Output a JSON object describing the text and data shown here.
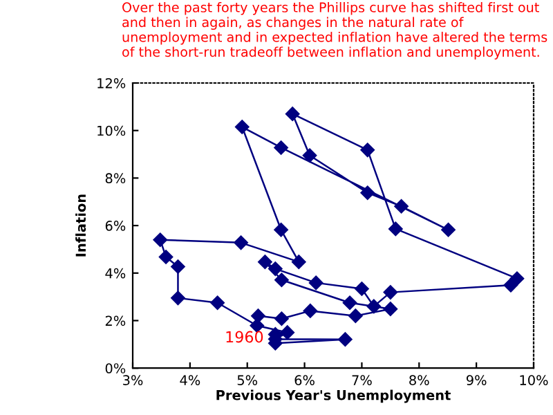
{
  "chart_data": {
    "type": "line",
    "title": "Over the past forty years the Phillips curve has shifted first out and then in again, as changes in the natural rate of unemployment and in expected inflation have altered the terms of the short-run tradeoff between inflation and unemployment.",
    "xlabel": "Previous Year's Unemployment",
    "ylabel": "Inflation",
    "series": [
      {
        "color": "#000080",
        "x": [
          5.49,
          5.49,
          6.71,
          5.49,
          5.7,
          5.17,
          4.48,
          3.79,
          3.79,
          3.58,
          3.48,
          4.89,
          5.9,
          5.59,
          4.91,
          5.59,
          8.51,
          7.69,
          7.1,
          6.09,
          5.79,
          7.1,
          7.59,
          9.71,
          9.6,
          7.5,
          7.21,
          7.0,
          6.2,
          5.49,
          5.31,
          5.6,
          6.79,
          7.5,
          6.89,
          6.1,
          5.6,
          5.19
        ],
        "values": [
          1.42,
          1.05,
          1.21,
          1.22,
          1.5,
          1.79,
          2.75,
          2.95,
          4.27,
          4.68,
          5.4,
          5.28,
          4.47,
          5.82,
          10.15,
          9.28,
          5.82,
          6.81,
          7.38,
          8.95,
          10.7,
          9.18,
          5.86,
          3.77,
          3.49,
          3.19,
          2.6,
          3.34,
          3.59,
          4.18,
          4.47,
          3.71,
          2.75,
          2.49,
          2.2,
          2.41,
          2.08,
          2.2
        ]
      }
    ],
    "marker": "diamond",
    "line_style": "solid",
    "grid": false,
    "legend": false,
    "xlim": [
      3,
      10
    ],
    "ylim": [
      0,
      12
    ],
    "xticks": [
      {
        "value": 3,
        "label": "3%"
      },
      {
        "value": 4,
        "label": "4%"
      },
      {
        "value": 5,
        "label": "5%"
      },
      {
        "value": 6,
        "label": "6%"
      },
      {
        "value": 7,
        "label": "7%"
      },
      {
        "value": 8,
        "label": "8%"
      },
      {
        "value": 9,
        "label": "9%"
      },
      {
        "value": 10,
        "label": "10%"
      }
    ],
    "yticks": [
      {
        "value": 0,
        "label": "0%"
      },
      {
        "value": 2,
        "label": "2%"
      },
      {
        "value": 4,
        "label": "4%"
      },
      {
        "value": 6,
        "label": "6%"
      },
      {
        "value": 8,
        "label": "8%"
      },
      {
        "value": 10,
        "label": "10%"
      },
      {
        "value": 12,
        "label": "12%"
      }
    ],
    "annotations": [
      {
        "text": "1960",
        "x": 5.49,
        "y": 1.42
      }
    ]
  }
}
